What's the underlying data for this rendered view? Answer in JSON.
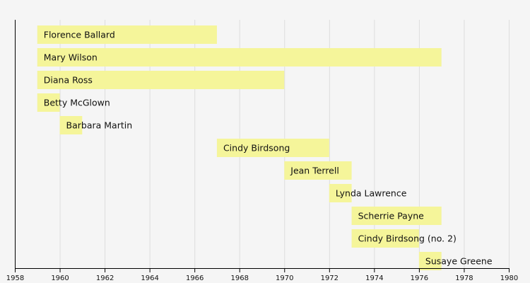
{
  "chart_data": {
    "type": "bar",
    "orientation": "horizontal-timeline",
    "title": "",
    "xlabel": "",
    "ylabel": "",
    "xlim": [
      1958,
      1980
    ],
    "x_ticks": [
      1958,
      1960,
      1962,
      1964,
      1966,
      1968,
      1970,
      1972,
      1974,
      1976,
      1978,
      1980
    ],
    "grid": true,
    "bar_color": "#f5f59a",
    "grid_color": "#dddddd",
    "axis_color": "#000000",
    "members": [
      {
        "name": "Florence Ballard",
        "start": 1959.0,
        "end": 1967.0
      },
      {
        "name": "Mary Wilson",
        "start": 1959.0,
        "end": 1977.0
      },
      {
        "name": "Diana Ross",
        "start": 1959.0,
        "end": 1970.0
      },
      {
        "name": "Betty McGlown",
        "start": 1959.0,
        "end": 1960.0
      },
      {
        "name": "Barbara Martin",
        "start": 1960.0,
        "end": 1961.0
      },
      {
        "name": "Cindy Birdsong",
        "start": 1967.0,
        "end": 1972.0
      },
      {
        "name": "Jean Terrell",
        "start": 1970.0,
        "end": 1973.0
      },
      {
        "name": "Lynda Lawrence",
        "start": 1972.0,
        "end": 1973.0
      },
      {
        "name": "Scherrie Payne",
        "start": 1973.0,
        "end": 1977.0
      },
      {
        "name": "Cindy Birdsong (no. 2)",
        "start": 1973.0,
        "end": 1976.0
      },
      {
        "name": "Susaye Greene",
        "start": 1976.0,
        "end": 1977.0
      }
    ]
  }
}
